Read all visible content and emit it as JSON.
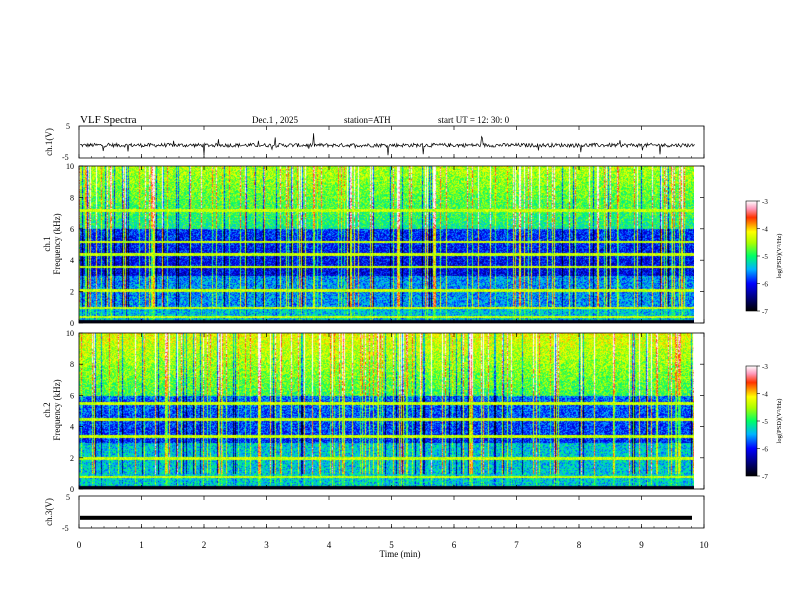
{
  "header": {
    "title": "VLF  Spectra",
    "date": "Dec.1  , 2025",
    "station": "station=ATH",
    "start_ut": "start  UT  =   12: 30: 0"
  },
  "chart_data": [
    {
      "type": "line",
      "name": "ch1-waveform",
      "ylabel": "ch.1(V)",
      "ylim": [
        -5,
        5
      ],
      "yticks": [
        "5",
        "-5"
      ],
      "x_range_min": [
        0,
        9.85
      ],
      "description_series": "broadband waveform amplitude fluctuating around -1 V with short spikes"
    },
    {
      "type": "heatmap",
      "name": "ch1-spectrogram",
      "ylabel": "Frequency (kHz)",
      "channel_label": "ch.1",
      "ylim": [
        0,
        10
      ],
      "yticks": [
        "0",
        "2",
        "4",
        "6",
        "8",
        "10"
      ],
      "colorbar": {
        "label": "log(PSD)(V²/Hz)",
        "range": [
          -7,
          -3
        ],
        "ticks": [
          "-3",
          "-4",
          "-5",
          "-6",
          "-7"
        ]
      },
      "tone_bands_khz": [
        0.4,
        1.0,
        2.1,
        3.6,
        4.4,
        5.2,
        7.2
      ]
    },
    {
      "type": "heatmap",
      "name": "ch2-spectrogram",
      "ylabel": "Frequency (kHz)",
      "channel_label": "ch.2",
      "ylim": [
        0,
        10
      ],
      "yticks": [
        "0",
        "2",
        "4",
        "6",
        "8",
        "10"
      ],
      "colorbar": {
        "label": "log(PSD)(V²/Hz)",
        "range": [
          -7,
          -3
        ],
        "ticks": [
          "-3",
          "-4",
          "-5",
          "-6",
          "-7"
        ]
      },
      "tone_bands_khz": [
        0.8,
        2.0,
        3.4,
        4.5,
        5.5
      ]
    },
    {
      "type": "line",
      "name": "ch3-waveform",
      "ylabel": "ch.3(V)",
      "ylim": [
        -5,
        5
      ],
      "yticks": [
        "5",
        "-5"
      ],
      "constant_value": -1.8
    }
  ],
  "xaxis": {
    "label": "Time  (min)",
    "range": [
      0,
      10
    ],
    "ticks": [
      "0",
      "1",
      "2",
      "3",
      "4",
      "5",
      "6",
      "7",
      "8",
      "9",
      "10"
    ]
  },
  "colors": {
    "axis": "#000000",
    "trace": "#000000"
  }
}
